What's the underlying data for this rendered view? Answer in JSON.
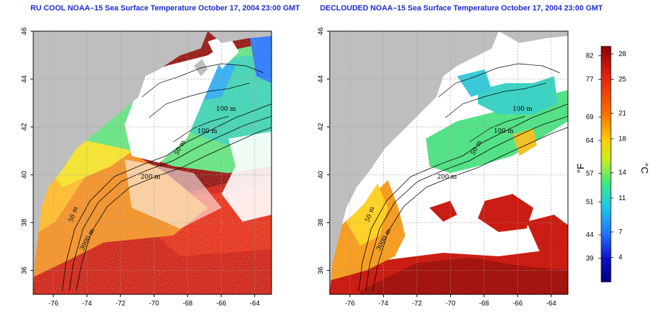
{
  "titles": {
    "left": "RU COOL NOAA–15 Sea Surface Temperature October 17, 2004 23:00 GMT",
    "right": "DECLOUDED NOAA–15 Sea Surface Temperature October 17, 2004 23:00 GMT"
  },
  "map": {
    "lon_ticks": [
      "-76",
      "-74",
      "-72",
      "-70",
      "-68",
      "-66",
      "-64"
    ],
    "lat_ticks": [
      "46",
      "44",
      "42",
      "40",
      "38",
      "36"
    ],
    "lon_range": [
      -77.2,
      -63.0
    ],
    "lat_range": [
      35.0,
      46.0
    ],
    "contour_labels": [
      "100 m",
      "100 m",
      "50 m",
      "200 m",
      "50 m",
      "3000 m"
    ],
    "land_color": "#bebebe",
    "cloud_color": "#ffffff"
  },
  "colorbar": {
    "fahrenheit_ticks": [
      "82",
      "77",
      "69",
      "64",
      "57",
      "51",
      "44",
      "39"
    ],
    "celsius_ticks": [
      "28",
      "25",
      "21",
      "18",
      "14",
      "11",
      "7",
      "4"
    ],
    "fahrenheit_unit": "°F",
    "celsius_unit": "°C",
    "colors": [
      "#8b0000",
      "#e02010",
      "#ff6a00",
      "#ffd000",
      "#c8ee20",
      "#3ee880",
      "#20c8e8",
      "#2070ff",
      "#1010c8",
      "#000080"
    ]
  }
}
